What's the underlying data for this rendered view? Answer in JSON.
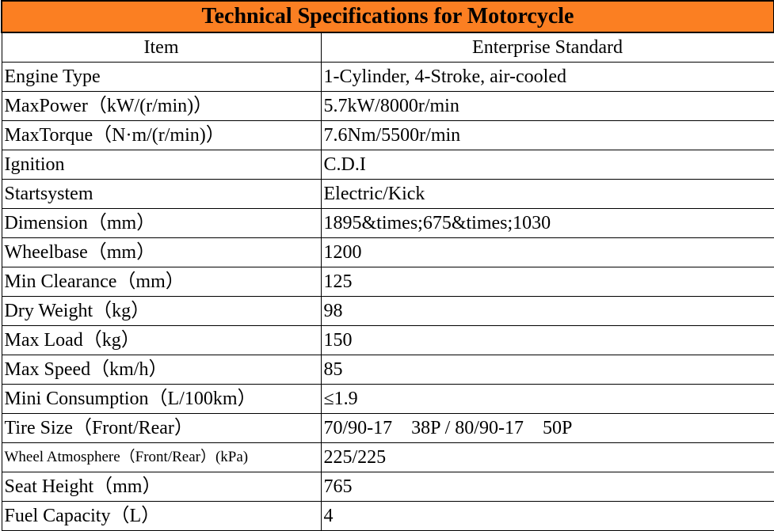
{
  "title": "Technical Specifications for Motorcycle",
  "header": {
    "item": "Item",
    "standard": "Enterprise Standard"
  },
  "rows": [
    {
      "item": "Engine Type",
      "value": "1-Cylinder, 4-Stroke, air-cooled"
    },
    {
      "item": "MaxPower（kW/(r/min)）",
      "value": "5.7kW/8000r/min"
    },
    {
      "item": "MaxTorque（N·m/(r/min)）",
      "value": "7.6Nm/5500r/min"
    },
    {
      "item": "Ignition",
      "value": "C.D.I"
    },
    {
      "item": "Startsystem",
      "value": "Electric/Kick"
    },
    {
      "item": "Dimension（mm）",
      "value": "1895&times;675&times;1030"
    },
    {
      "item": "Wheelbase（mm）",
      "value": "1200"
    },
    {
      "item": "Min Clearance（mm）",
      "value": "125"
    },
    {
      "item": "Dry Weight（kg）",
      "value": "98"
    },
    {
      "item": "Max Load（kg）",
      "value": "150"
    },
    {
      "item": "Max Speed（km/h）",
      "value": "85"
    },
    {
      "item": "Mini Consumption（L/100km）",
      "value": "≤1.9"
    },
    {
      "item": "Tire Size（Front/Rear）",
      "value": "70/90-17    38P / 80/90-17    50P"
    },
    {
      "item": "Wheel Atmosphere（Front/Rear）(kPa)",
      "value": "225/225"
    },
    {
      "item": "Seat Height（mm）",
      "value": "765"
    },
    {
      "item": "Fuel Capacity（L）",
      "value": "4"
    }
  ],
  "colors": {
    "title_background": "#fb7f22",
    "border": "#000000",
    "text": "#000000"
  }
}
